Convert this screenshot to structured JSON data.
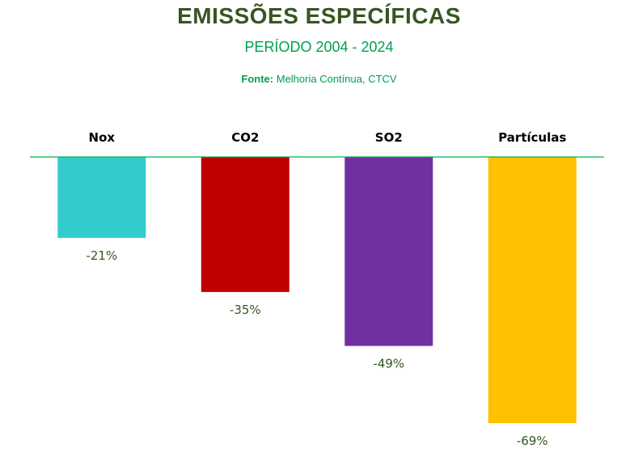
{
  "header": {
    "title": "EMISSÕES ESPECÍFICAS",
    "subtitle": "PERÍODO 2004 - 2024",
    "source_label": "Fonte:",
    "source_text": " Melhoria Contínua, CTCV"
  },
  "chart_data": {
    "type": "bar",
    "title": "EMISSÕES ESPECÍFICAS",
    "subtitle": "PERÍODO 2004 - 2024",
    "categories": [
      "Nox",
      "CO2",
      "SO2",
      "Partículas"
    ],
    "values": [
      -21,
      -35,
      -49,
      -69
    ],
    "value_labels": [
      "-21%",
      "-35%",
      "-49%",
      "-69%"
    ],
    "colors": [
      "#33CCCC",
      "#C00000",
      "#7030A0",
      "#FFC000"
    ],
    "axis_line_color": "#00B050",
    "ylim": [
      -69,
      0
    ],
    "grid": false,
    "legend": "none",
    "category_label_position": "above-axis",
    "xlabel": "",
    "ylabel": ""
  }
}
